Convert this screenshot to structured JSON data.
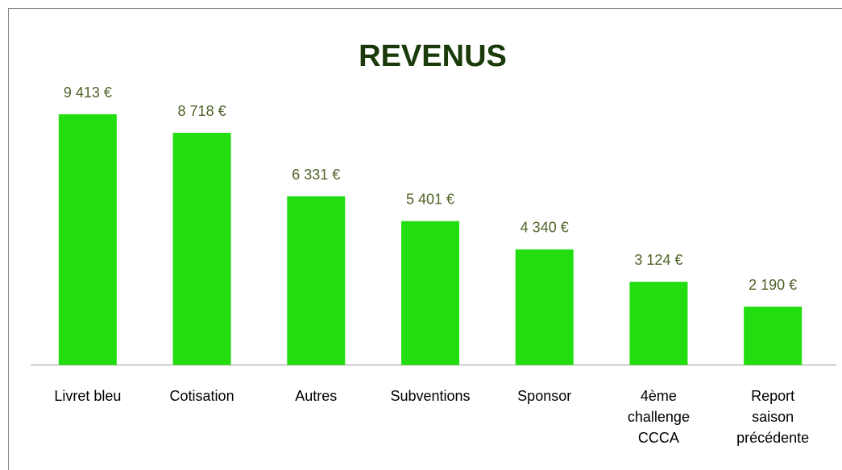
{
  "chart_data": {
    "type": "bar",
    "title": "REVENUS",
    "categories": [
      "Livret bleu",
      "Cotisation",
      "Autres",
      "Subventions",
      "Sponsor",
      "4ème\nchallenge\nCCCA",
      "Report\nsaison\nprécédente"
    ],
    "values": [
      9413,
      8718,
      6331,
      5401,
      4340,
      3124,
      2190
    ],
    "value_labels": [
      "9 413 €",
      "8 718 €",
      "6 331 €",
      "5 401 €",
      "4 340 €",
      "3 124 €",
      "2 190 €"
    ],
    "color": "#22dd0f",
    "ylim": [
      0,
      10000
    ]
  }
}
